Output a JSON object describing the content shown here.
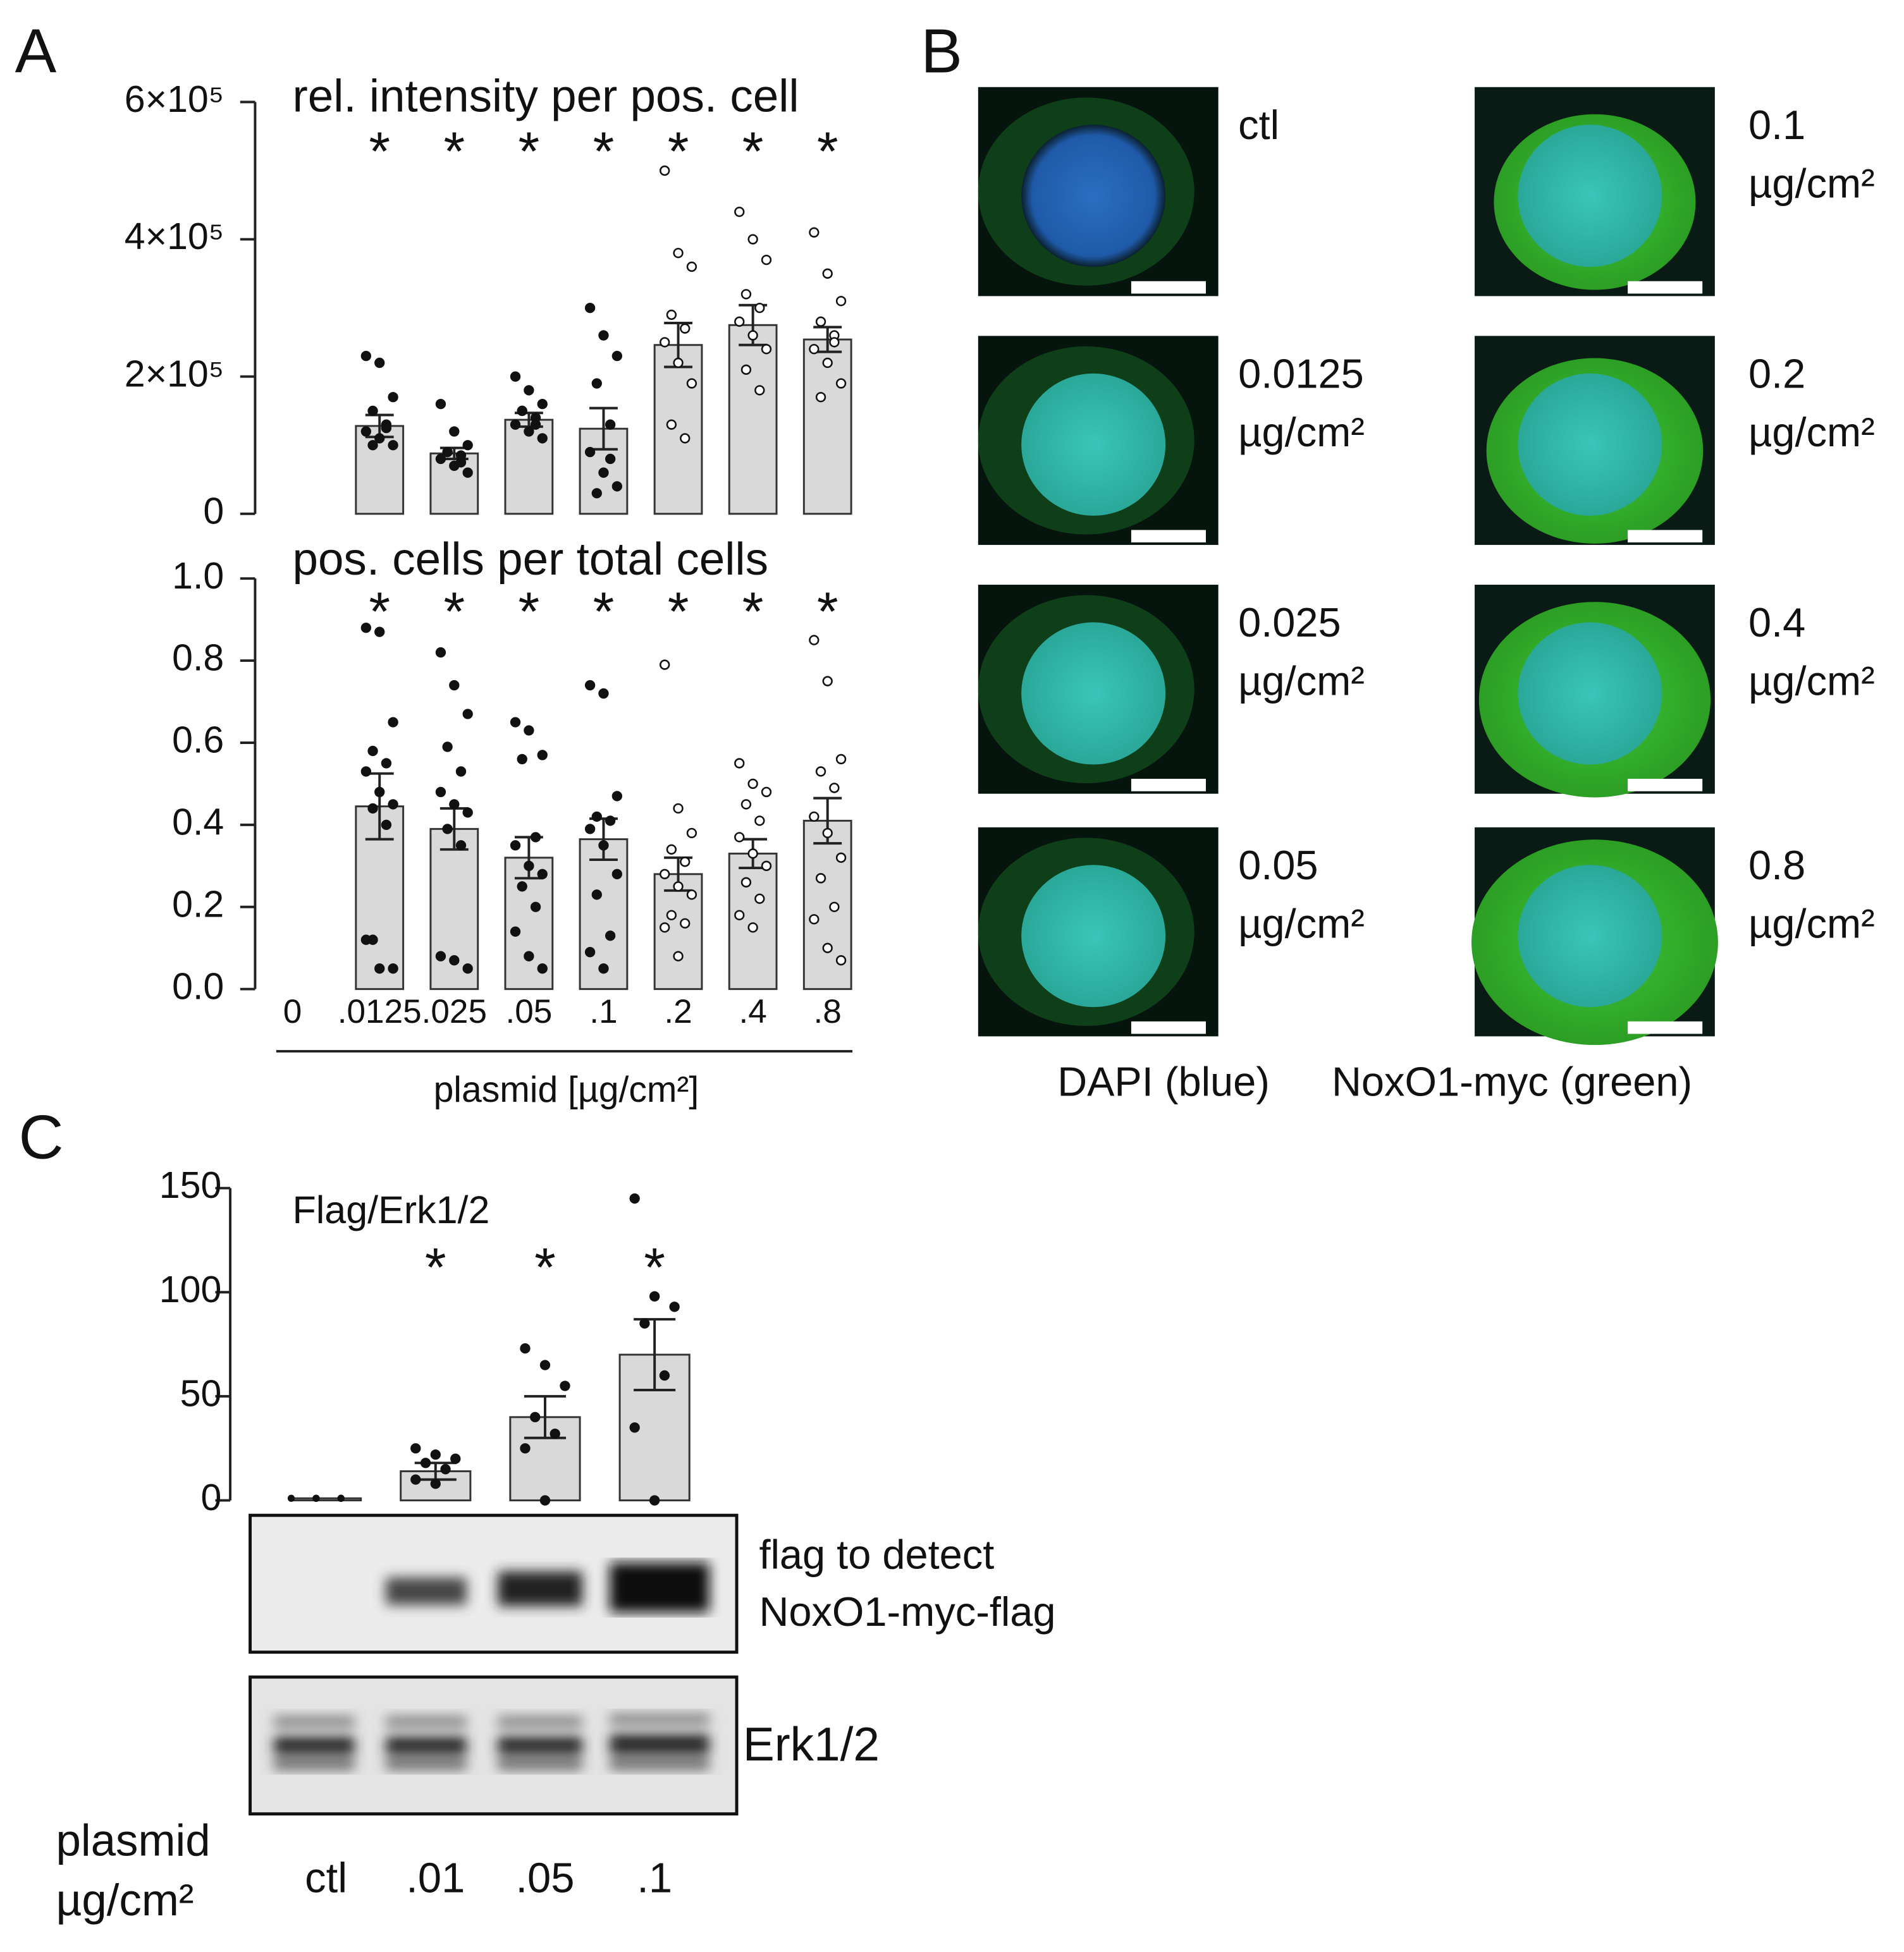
{
  "panel_labels": [
    "A",
    "B",
    "C"
  ],
  "chart_data": [
    {
      "type": "bar",
      "title": "rel. intensity per pos. cell",
      "color": "#d9d9d9",
      "categories": [
        null,
        null,
        null,
        null,
        null,
        null,
        null,
        null
      ],
      "values": [
        0,
        128000,
        88000,
        137000,
        124000,
        246000,
        275000,
        254000
      ],
      "errors": [
        0,
        16000,
        8000,
        10000,
        30000,
        32000,
        29000,
        18000
      ],
      "points": [
        [],
        [
          230000,
          220000,
          170000,
          150000,
          130000,
          120000,
          110000,
          100000,
          100000,
          125000
        ],
        [
          160000,
          120000,
          100000,
          90000,
          85000,
          80000,
          70000,
          60000,
          90000,
          75000
        ],
        [
          200000,
          180000,
          160000,
          150000,
          140000,
          130000,
          120000,
          110000,
          150000,
          130000
        ],
        [
          300000,
          260000,
          230000,
          190000,
          130000,
          90000,
          60000,
          40000,
          30000,
          80000
        ],
        [
          500000,
          380000,
          360000,
          290000,
          270000,
          250000,
          220000,
          190000,
          130000,
          110000
        ],
        [
          440000,
          400000,
          370000,
          320000,
          300000,
          280000,
          260000,
          240000,
          210000,
          180000
        ],
        [
          410000,
          350000,
          310000,
          280000,
          260000,
          240000,
          220000,
          190000,
          170000,
          250000
        ]
      ],
      "significance": [
        null,
        "*",
        "*",
        "*",
        "*",
        "*",
        "*",
        "*"
      ],
      "ylim": [
        0,
        600000
      ],
      "yticks": [
        0,
        {
          "value": 200000,
          "label": "2×10⁵"
        },
        {
          "value": 400000,
          "label": "4×10⁵"
        },
        {
          "value": 600000,
          "label": "6×10⁵"
        }
      ]
    },
    {
      "type": "bar",
      "title": "pos. cells per total cells",
      "color": "#d9d9d9",
      "xlabel": "plasmid [µg/cm²]",
      "categories": [
        "0",
        ".0125",
        ".025",
        ".05",
        ".1",
        ".2",
        ".4",
        ".8"
      ],
      "values": [
        0,
        0.445,
        0.39,
        0.32,
        0.365,
        0.28,
        0.33,
        0.41
      ],
      "errors": [
        0,
        0.08,
        0.05,
        0.05,
        0.05,
        0.04,
        0.035,
        0.055
      ],
      "points": [
        [],
        [
          0.88,
          0.87,
          0.65,
          0.58,
          0.55,
          0.53,
          0.48,
          0.45,
          0.44,
          0.4,
          0.12,
          0.05,
          0.05,
          0.12
        ],
        [
          0.82,
          0.74,
          0.67,
          0.59,
          0.53,
          0.48,
          0.45,
          0.43,
          0.39,
          0.35,
          0.08,
          0.07,
          0.05
        ],
        [
          0.65,
          0.63,
          0.57,
          0.56,
          0.37,
          0.35,
          0.3,
          0.28,
          0.25,
          0.2,
          0.14,
          0.08,
          0.05
        ],
        [
          0.74,
          0.72,
          0.47,
          0.42,
          0.41,
          0.39,
          0.35,
          0.28,
          0.23,
          0.13,
          0.09,
          0.05
        ],
        [
          0.79,
          0.44,
          0.38,
          0.34,
          0.31,
          0.28,
          0.25,
          0.23,
          0.18,
          0.16,
          0.15,
          0.08
        ],
        [
          0.55,
          0.5,
          0.48,
          0.45,
          0.41,
          0.37,
          0.33,
          0.3,
          0.26,
          0.22,
          0.18,
          0.15
        ],
        [
          0.85,
          0.75,
          0.56,
          0.53,
          0.49,
          0.42,
          0.38,
          0.32,
          0.27,
          0.2,
          0.17,
          0.1,
          0.07
        ]
      ],
      "significance": [
        null,
        "*",
        "*",
        "*",
        "*",
        "*",
        "*",
        "*"
      ],
      "ylim": [
        0,
        1
      ],
      "yticks": [
        {
          "value": 0,
          "label": "0.0"
        },
        0.2,
        0.4,
        0.6,
        0.8,
        {
          "value": 1,
          "label": "1.0"
        }
      ]
    },
    {
      "type": "bar",
      "title": "Flag/Erk1/2",
      "color": "#d9d9d9",
      "categories": [
        "ctl",
        ".01",
        ".05",
        ".1"
      ],
      "values": [
        1,
        14,
        40,
        70
      ],
      "errors": [
        0,
        4,
        10,
        17
      ],
      "points": [
        [
          1,
          1,
          1,
          1,
          1,
          1,
          1
        ],
        [
          25,
          22,
          20,
          18,
          15,
          10,
          8
        ],
        [
          73,
          65,
          55,
          40,
          32,
          25,
          0
        ],
        [
          145,
          98,
          93,
          85,
          60,
          35,
          0
        ]
      ],
      "significance": [
        null,
        "*",
        "*",
        "*"
      ],
      "ylim": [
        0,
        150
      ],
      "yticks": [
        0,
        50,
        100,
        150
      ]
    }
  ],
  "micrographs": {
    "images": [
      {
        "label": "ctl"
      },
      {
        "label": "0.0125",
        "unit": "µg/cm²"
      },
      {
        "label": "0.025",
        "unit": "µg/cm²"
      },
      {
        "label": "0.05",
        "unit": "µg/cm²"
      },
      {
        "label": "0.1",
        "unit": "µg/cm²"
      },
      {
        "label": "0.2",
        "unit": "µg/cm²"
      },
      {
        "label": "0.4",
        "unit": "µg/cm²"
      },
      {
        "label": "0.8",
        "unit": "µg/cm²"
      }
    ],
    "captions": [
      "DAPI (blue)",
      "NoxO1-myc (green)"
    ]
  },
  "blot": {
    "bands": [
      {
        "label": [
          "flag to detect",
          "NoxO1-myc-flag"
        ]
      },
      {
        "label": [
          "Erk1/2"
        ]
      }
    ],
    "lane_axis_label": [
      "plasmid",
      "µg/cm²"
    ]
  }
}
